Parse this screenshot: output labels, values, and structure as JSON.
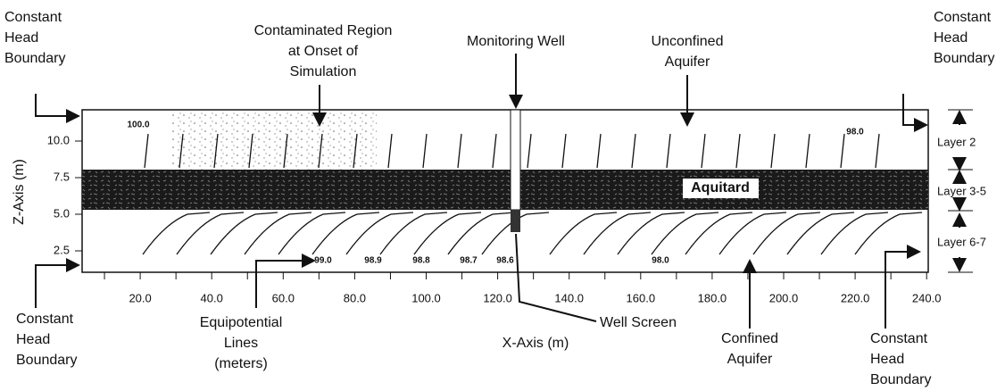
{
  "labels": {
    "top_left_boundary": [
      "Constant",
      "Head",
      "Boundary"
    ],
    "contaminated_region": [
      "Contaminated Region",
      "at Onset of",
      "Simulation"
    ],
    "monitoring_well": "Monitoring Well",
    "unconfined_aquifer": [
      "Unconfined",
      "Aquifer"
    ],
    "top_right_boundary": [
      "Constant",
      "Head",
      "Boundary"
    ],
    "bottom_left_boundary": [
      "Constant",
      "Head",
      "Boundary"
    ],
    "equipotential_lines": [
      "Equipotential",
      "Lines",
      "(meters)"
    ],
    "well_screen": "Well Screen",
    "confined_aquifer": [
      "Confined",
      "Aquifer"
    ],
    "bottom_right_boundary": [
      "Constant",
      "Head",
      "Boundary"
    ],
    "aquitard": "Aquitard"
  },
  "axes": {
    "x_label": "X-Axis (m)",
    "z_label": "Z-Axis (m)",
    "x_ticks": [
      "20.0",
      "40.0",
      "60.0",
      "80.0",
      "100.0",
      "120.0",
      "140.0",
      "160.0",
      "180.0",
      "200.0",
      "220.0",
      "240.0"
    ],
    "z_ticks": [
      "10.0",
      "7.5",
      "5.0",
      "2.5"
    ]
  },
  "layers": [
    "Layer 2",
    "Layer 3-5",
    "Layer 6-7"
  ],
  "contour_labels": [
    "100.0",
    "98.0",
    "99.0",
    "98.9",
    "98.8",
    "98.7",
    "98.6",
    "98.0"
  ]
}
